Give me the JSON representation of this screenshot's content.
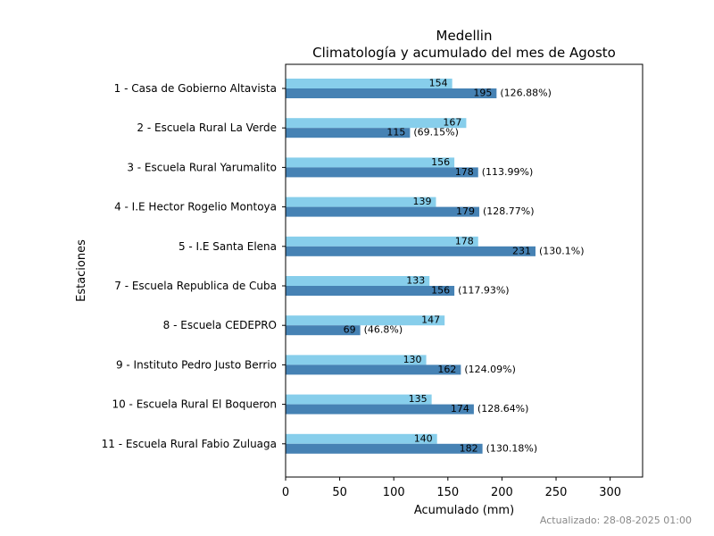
{
  "chart_data": {
    "type": "bar",
    "orientation": "horizontal",
    "title": "Medellin",
    "subtitle": "Climatología y acumulado del mes de Agosto",
    "xlabel": "Acumulado (mm)",
    "ylabel": "Estaciones",
    "xlim": [
      0,
      330
    ],
    "xticks": [
      0,
      50,
      100,
      150,
      200,
      250,
      300
    ],
    "grid": false,
    "categories": [
      "1 - Casa de Gobierno Altavista",
      "2 - Escuela Rural La Verde",
      "3 - Escuela Rural Yarumalito",
      "4 - I.E Hector Rogelio Montoya",
      "5 - I.E Santa Elena",
      "7 - Escuela Republica de Cuba",
      "8 - Escuela CEDEPRO",
      "9 - Instituto Pedro Justo Berrio",
      "10 - Escuela Rural El Boqueron",
      "11 - Escuela Rural Fabio Zuluaga"
    ],
    "series": [
      {
        "color": "#87ceeb",
        "values": [
          154,
          167,
          156,
          139,
          178,
          133,
          147,
          130,
          135,
          140
        ]
      },
      {
        "color": "#4682b4",
        "values": [
          195,
          115,
          178,
          179,
          231,
          156,
          69,
          162,
          174,
          182
        ],
        "annotations": [
          "(126.88%)",
          "(69.15%)",
          "(113.99%)",
          "(128.77%)",
          "(130.1%)",
          "(117.93%)",
          "(46.8%)",
          "(124.09%)",
          "(128.64%)",
          "(130.18%)"
        ]
      }
    ]
  },
  "footer": "Actualizado: 28-08-2025 01:00"
}
